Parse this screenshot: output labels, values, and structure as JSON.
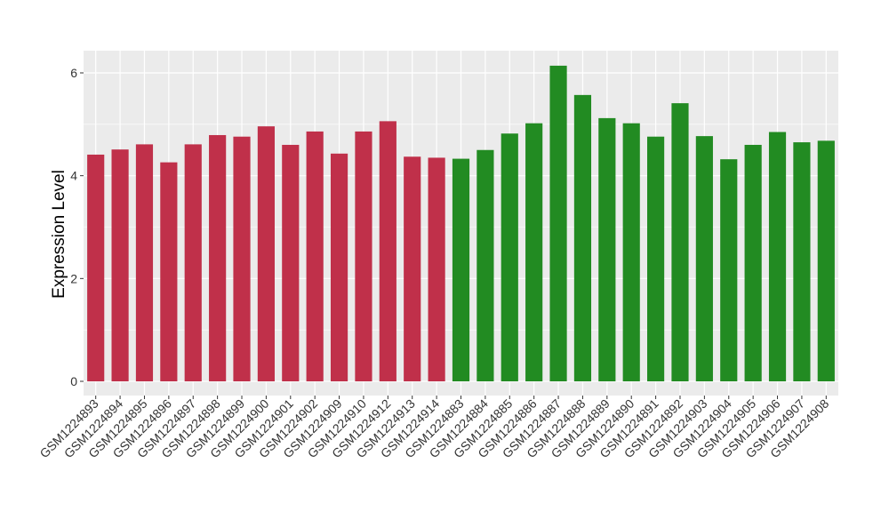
{
  "chart_data": {
    "type": "bar",
    "title": "",
    "xlabel": "",
    "ylabel": "Expression Level",
    "ylim": [
      0,
      6.4
    ],
    "yticks": [
      0,
      2,
      4,
      6
    ],
    "grid": true,
    "legend": "none",
    "colors": {
      "group_a": "#C0304A",
      "group_b": "#228B22",
      "panel": "#EBEBEB",
      "grid": "#FFFFFF"
    },
    "categories": [
      "GSM1224893",
      "GSM1224894",
      "GSM1224895",
      "GSM1224896",
      "GSM1224897",
      "GSM1224898",
      "GSM1224899",
      "GSM1224900",
      "GSM1224901",
      "GSM1224902",
      "GSM1224909",
      "GSM1224910",
      "GSM1224912",
      "GSM1224913",
      "GSM1224914",
      "GSM1224883",
      "GSM1224884",
      "GSM1224885",
      "GSM1224886",
      "GSM1224887",
      "GSM1224888",
      "GSM1224889",
      "GSM1224890",
      "GSM1224891",
      "GSM1224892",
      "GSM1224903",
      "GSM1224904",
      "GSM1224905",
      "GSM1224906",
      "GSM1224907",
      "GSM1224908"
    ],
    "values": [
      4.41,
      4.51,
      4.61,
      4.26,
      4.61,
      4.79,
      4.76,
      4.96,
      4.6,
      4.86,
      4.43,
      4.86,
      5.06,
      4.37,
      4.35,
      4.33,
      4.5,
      4.82,
      5.02,
      6.14,
      5.57,
      5.12,
      5.02,
      4.76,
      5.41,
      4.77,
      4.32,
      4.6,
      4.85,
      4.65,
      4.68
    ],
    "groups": [
      "a",
      "a",
      "a",
      "a",
      "a",
      "a",
      "a",
      "a",
      "a",
      "a",
      "a",
      "a",
      "a",
      "a",
      "a",
      "b",
      "b",
      "b",
      "b",
      "b",
      "b",
      "b",
      "b",
      "b",
      "b",
      "b",
      "b",
      "b",
      "b",
      "b",
      "b"
    ]
  }
}
